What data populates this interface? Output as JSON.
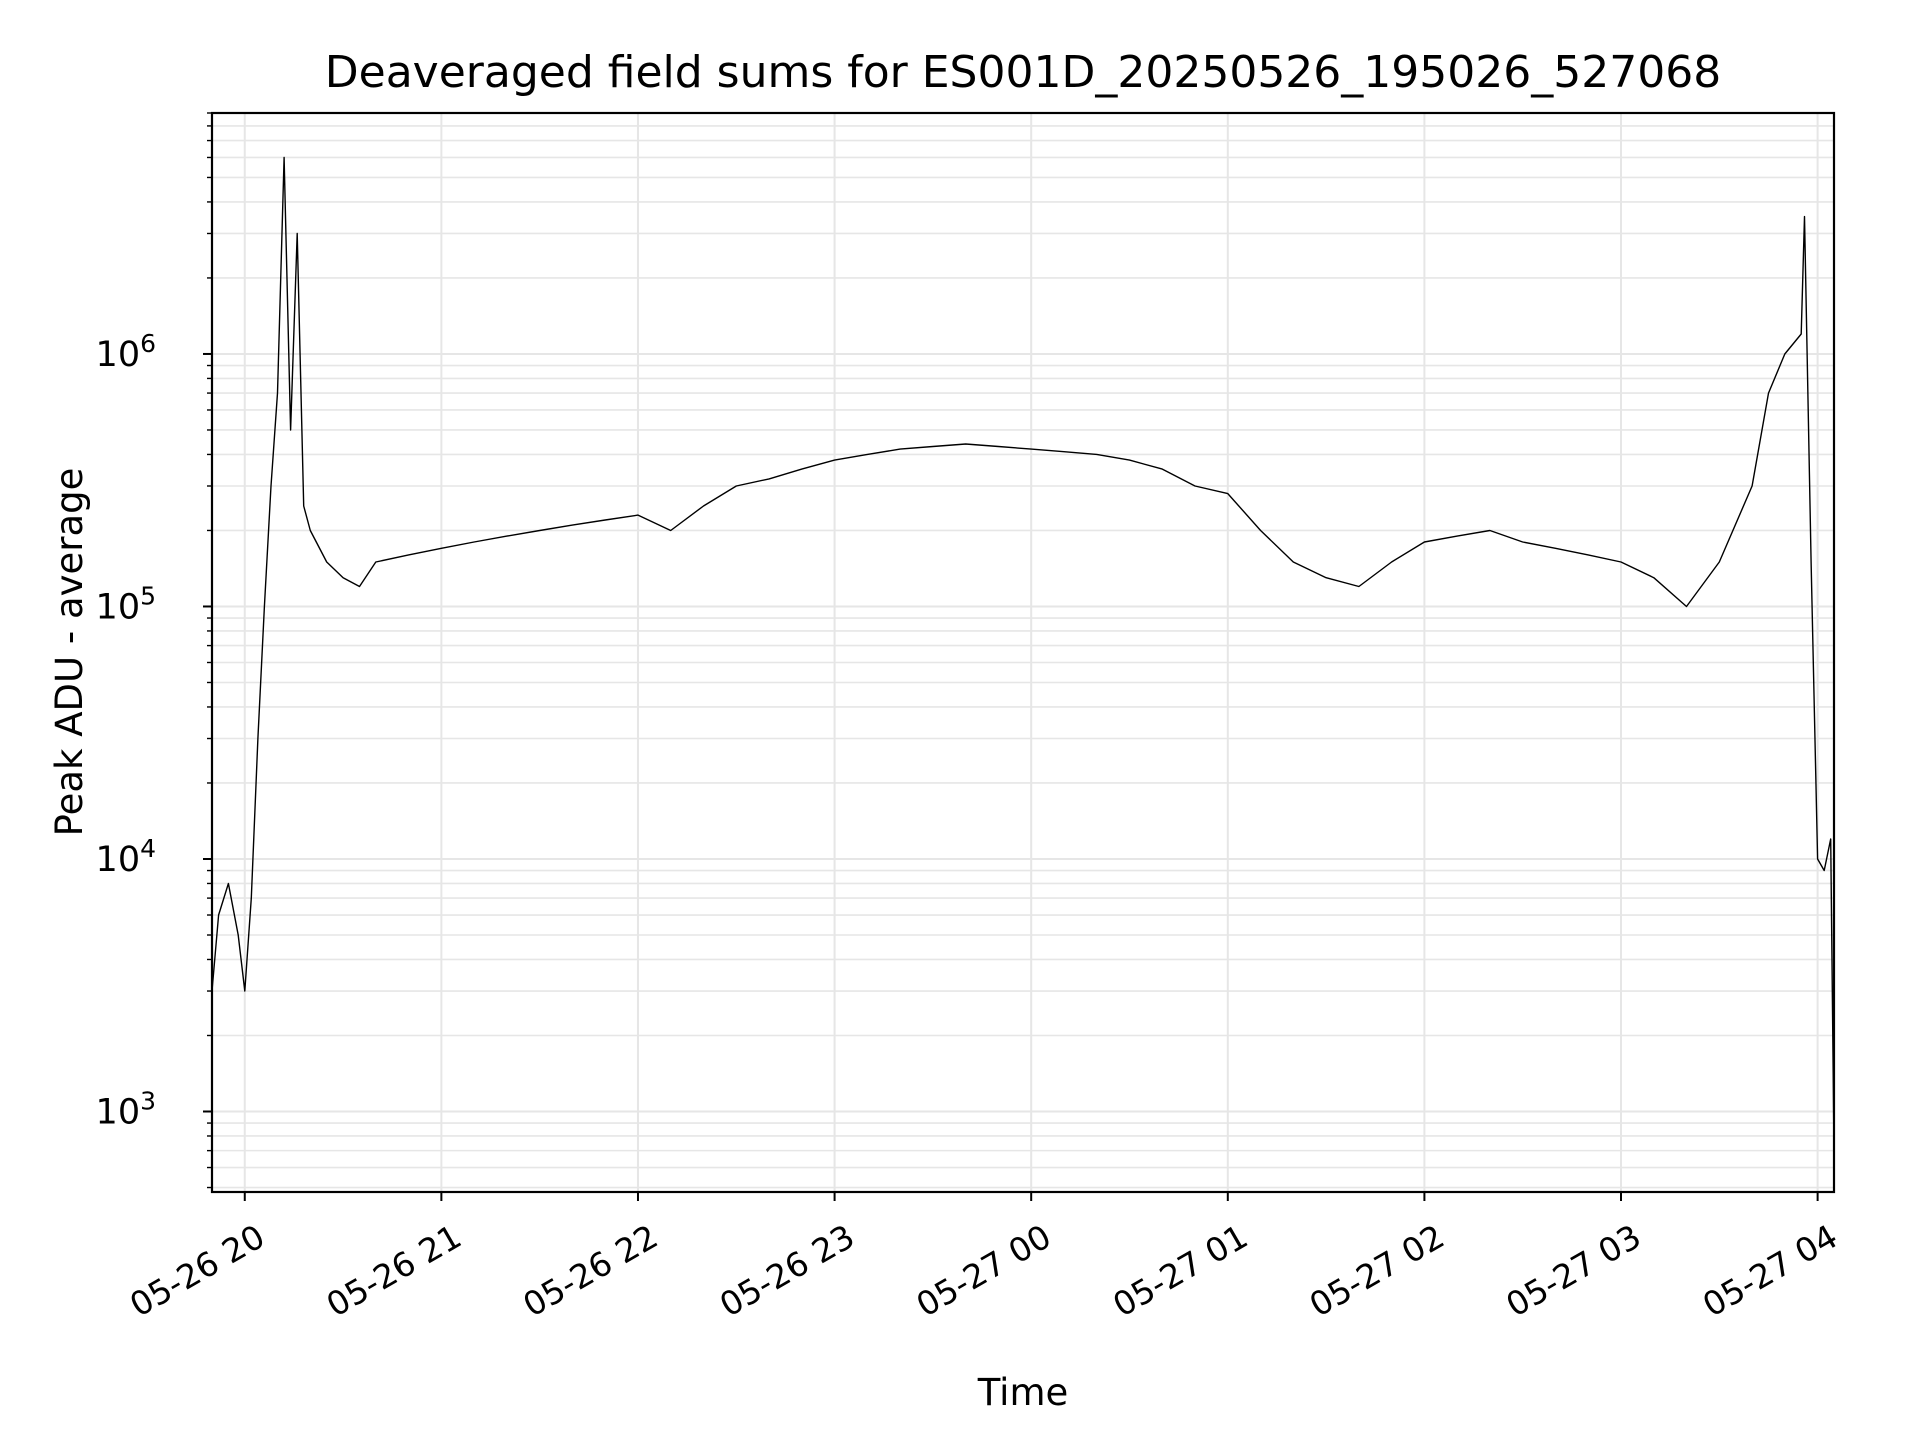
{
  "chart_data": {
    "type": "line",
    "title": "Deaveraged field sums for ES001D_20250526_195026_527068",
    "xlabel": "Time",
    "ylabel": "Peak ADU - average",
    "y_scale": "log",
    "ylim": [
      480,
      9000000
    ],
    "xlim": [
      "05-26 19:50",
      "05-27 04:05"
    ],
    "grid": true,
    "line_color": "#000000",
    "grid_color": "#e6e6e6",
    "x_ticks": [
      {
        "value": "05-26 20:00",
        "label": "05-26 20"
      },
      {
        "value": "05-26 21:00",
        "label": "05-26 21"
      },
      {
        "value": "05-26 22:00",
        "label": "05-26 22"
      },
      {
        "value": "05-26 23:00",
        "label": "05-26 23"
      },
      {
        "value": "05-27 00:00",
        "label": "05-27 00"
      },
      {
        "value": "05-27 01:00",
        "label": "05-27 01"
      },
      {
        "value": "05-27 02:00",
        "label": "05-27 02"
      },
      {
        "value": "05-27 03:00",
        "label": "05-27 03"
      },
      {
        "value": "05-27 04:00",
        "label": "05-27 04"
      }
    ],
    "y_ticks": [
      {
        "value": 1000,
        "base": "10",
        "exp": "3"
      },
      {
        "value": 10000,
        "base": "10",
        "exp": "4"
      },
      {
        "value": 100000,
        "base": "10",
        "exp": "5"
      },
      {
        "value": 1000000,
        "base": "10",
        "exp": "6"
      }
    ],
    "series": [
      {
        "x": [
          "05-26 19:50",
          "05-26 19:52",
          "05-26 19:55",
          "05-26 19:58",
          "05-26 20:00",
          "05-26 20:02",
          "05-26 20:04",
          "05-26 20:06",
          "05-26 20:08",
          "05-26 20:10",
          "05-26 20:12",
          "05-26 20:14",
          "05-26 20:16",
          "05-26 20:18",
          "05-26 20:20",
          "05-26 20:25",
          "05-26 20:30",
          "05-26 20:35",
          "05-26 20:40",
          "05-26 20:50",
          "05-26 21:00",
          "05-26 21:10",
          "05-26 21:20",
          "05-26 21:30",
          "05-26 21:40",
          "05-26 21:50",
          "05-26 22:00",
          "05-26 22:10",
          "05-26 22:20",
          "05-26 22:30",
          "05-26 22:40",
          "05-26 22:50",
          "05-26 23:00",
          "05-26 23:10",
          "05-26 23:20",
          "05-26 23:30",
          "05-26 23:40",
          "05-26 23:50",
          "05-27 00:00",
          "05-27 00:10",
          "05-27 00:20",
          "05-27 00:30",
          "05-27 00:40",
          "05-27 00:50",
          "05-27 01:00",
          "05-27 01:10",
          "05-27 01:20",
          "05-27 01:30",
          "05-27 01:40",
          "05-27 01:50",
          "05-27 02:00",
          "05-27 02:10",
          "05-27 02:20",
          "05-27 02:30",
          "05-27 02:40",
          "05-27 02:50",
          "05-27 03:00",
          "05-27 03:10",
          "05-27 03:20",
          "05-27 03:30",
          "05-27 03:40",
          "05-27 03:45",
          "05-27 03:50",
          "05-27 03:55",
          "05-27 03:56",
          "05-27 03:58",
          "05-27 04:00",
          "05-27 04:02",
          "05-27 04:04",
          "05-27 04:05"
        ],
        "y": [
          3000,
          6000,
          8000,
          5000,
          3000,
          7000,
          30000,
          100000,
          300000,
          700000,
          6000000,
          500000,
          3000000,
          250000,
          200000,
          150000,
          130000,
          120000,
          150000,
          160000,
          170000,
          180000,
          190000,
          200000,
          210000,
          220000,
          230000,
          200000,
          250000,
          300000,
          320000,
          350000,
          380000,
          400000,
          420000,
          430000,
          440000,
          430000,
          420000,
          410000,
          400000,
          380000,
          350000,
          300000,
          280000,
          200000,
          150000,
          130000,
          120000,
          150000,
          180000,
          190000,
          200000,
          180000,
          170000,
          160000,
          150000,
          130000,
          100000,
          150000,
          300000,
          700000,
          1000000,
          1200000,
          3500000,
          150000,
          10000,
          9000,
          12000,
          700
        ]
      }
    ]
  }
}
